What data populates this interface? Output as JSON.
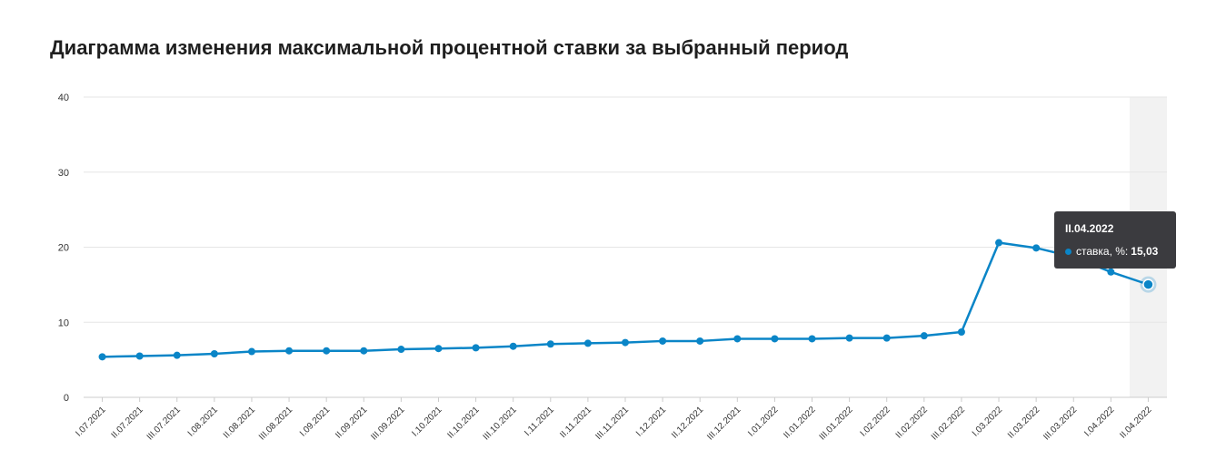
{
  "chart_data": {
    "type": "line",
    "title": "Диаграмма изменения максимальной процентной ставки за выбранный период",
    "xlabel": "",
    "ylabel": "",
    "ylim": [
      0,
      40
    ],
    "yticks": [
      "0",
      "10",
      "20",
      "30",
      "40"
    ],
    "grid": true,
    "legend": "none",
    "categories": [
      "I.07.2021",
      "II.07.2021",
      "III.07.2021",
      "I.08.2021",
      "II.08.2021",
      "III.08.2021",
      "I.09.2021",
      "II.09.2021",
      "III.09.2021",
      "I.10.2021",
      "II.10.2021",
      "III.10.2021",
      "I.11.2021",
      "II.11.2021",
      "III.11.2021",
      "I.12.2021",
      "II.12.2021",
      "III.12.2021",
      "I.01.2022",
      "II.01.2022",
      "III.01.2022",
      "I.02.2022",
      "II.02.2022",
      "III.02.2022",
      "I.03.2022",
      "II.03.2022",
      "III.03.2022",
      "I.04.2022",
      "II.04.2022"
    ],
    "series": [
      {
        "name": "ставка, %",
        "color": "#0a85c7",
        "values": [
          5.4,
          5.5,
          5.6,
          5.8,
          6.1,
          6.2,
          6.2,
          6.2,
          6.4,
          6.5,
          6.6,
          6.8,
          7.1,
          7.2,
          7.3,
          7.5,
          7.5,
          7.8,
          7.8,
          7.8,
          7.9,
          7.9,
          8.2,
          8.7,
          20.6,
          19.9,
          18.7,
          16.7,
          15.03
        ]
      }
    ],
    "highlight_index": 28
  },
  "tooltip": {
    "title": "II.04.2022",
    "label": "ставка, %:",
    "value": "15,03"
  }
}
